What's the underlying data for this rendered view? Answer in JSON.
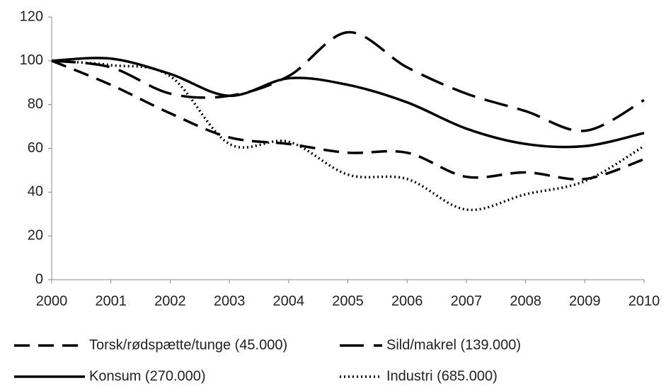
{
  "chart_data": {
    "type": "line",
    "x": [
      2000,
      2001,
      2002,
      2003,
      2004,
      2005,
      2006,
      2007,
      2008,
      2009,
      2010
    ],
    "xlim": [
      2000,
      2010
    ],
    "xticks": [
      2000,
      2001,
      2002,
      2003,
      2004,
      2005,
      2006,
      2007,
      2008,
      2009,
      2010
    ],
    "ylim": [
      0,
      120
    ],
    "yticks": [
      0,
      20,
      40,
      60,
      80,
      100,
      120
    ],
    "grid": false,
    "legend": "bottom",
    "series": [
      {
        "name": "Torsk/rødspætte/tunge (45.000)",
        "color": "#000000",
        "dash": "dashed",
        "values": [
          100,
          89,
          76,
          65,
          62,
          58,
          58,
          47,
          49,
          46,
          55
        ]
      },
      {
        "name": "Sild/makrel (139.000)",
        "color": "#000000",
        "dash": "long-dashed",
        "values": [
          100,
          97,
          85,
          84,
          93,
          113,
          97,
          85,
          77,
          68,
          82
        ]
      },
      {
        "name": "Konsum  (270.000)",
        "color": "#000000",
        "dash": "solid",
        "values": [
          100,
          101,
          94,
          84,
          92,
          89,
          81,
          69,
          62,
          61,
          67
        ]
      },
      {
        "name": "Industri (685.000)",
        "color": "#000000",
        "dash": "dotted",
        "values": [
          100,
          98,
          93,
          62,
          63,
          48,
          46,
          32,
          39,
          45,
          61
        ]
      }
    ]
  }
}
